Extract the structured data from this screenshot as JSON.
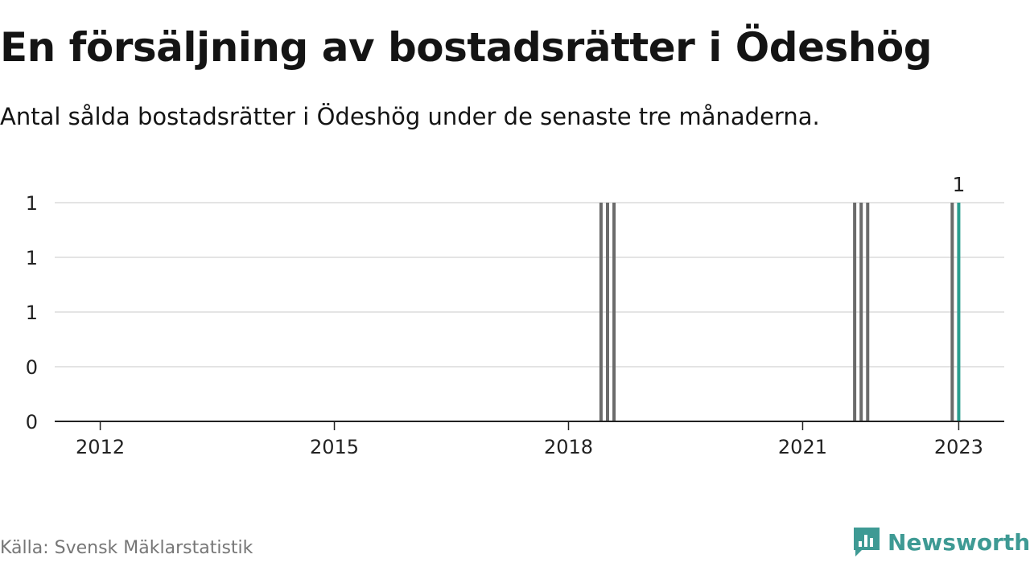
{
  "title": "En försäljning av bostadsrätter i Ödeshög",
  "subtitle": "Antal sålda bostadsrätter i Ödeshög under de senaste tre månaderna.",
  "source": "Källa: Svensk Mäklarstatistik",
  "brand": {
    "name": "Newsworthy",
    "color": "#3e9a94"
  },
  "chart_data": {
    "type": "bar",
    "x_axis": {
      "type": "date",
      "range": [
        "2011-06",
        "2023-08"
      ],
      "ticks": [
        "2012",
        "2015",
        "2018",
        "2021",
        "2023"
      ]
    },
    "y_axis": {
      "range": [
        0,
        1
      ],
      "ticks": [
        "0",
        "0",
        "1",
        "1",
        "1"
      ]
    },
    "grid": true,
    "colors": {
      "past": "#6b6b6b",
      "latest": "#2a9d8f"
    },
    "series": [
      {
        "points": [
          {
            "x": "2018-06",
            "y": 1
          },
          {
            "x": "2018-07",
            "y": 1
          },
          {
            "x": "2018-08",
            "y": 1
          },
          {
            "x": "2021-09",
            "y": 1
          },
          {
            "x": "2021-10",
            "y": 1
          },
          {
            "x": "2021-11",
            "y": 1
          },
          {
            "x": "2022-12",
            "y": 1
          },
          {
            "x": "2023-01",
            "y": 1,
            "latest": true
          }
        ]
      }
    ],
    "annotations": [
      {
        "x": "2023-01",
        "text": "1"
      }
    ]
  }
}
